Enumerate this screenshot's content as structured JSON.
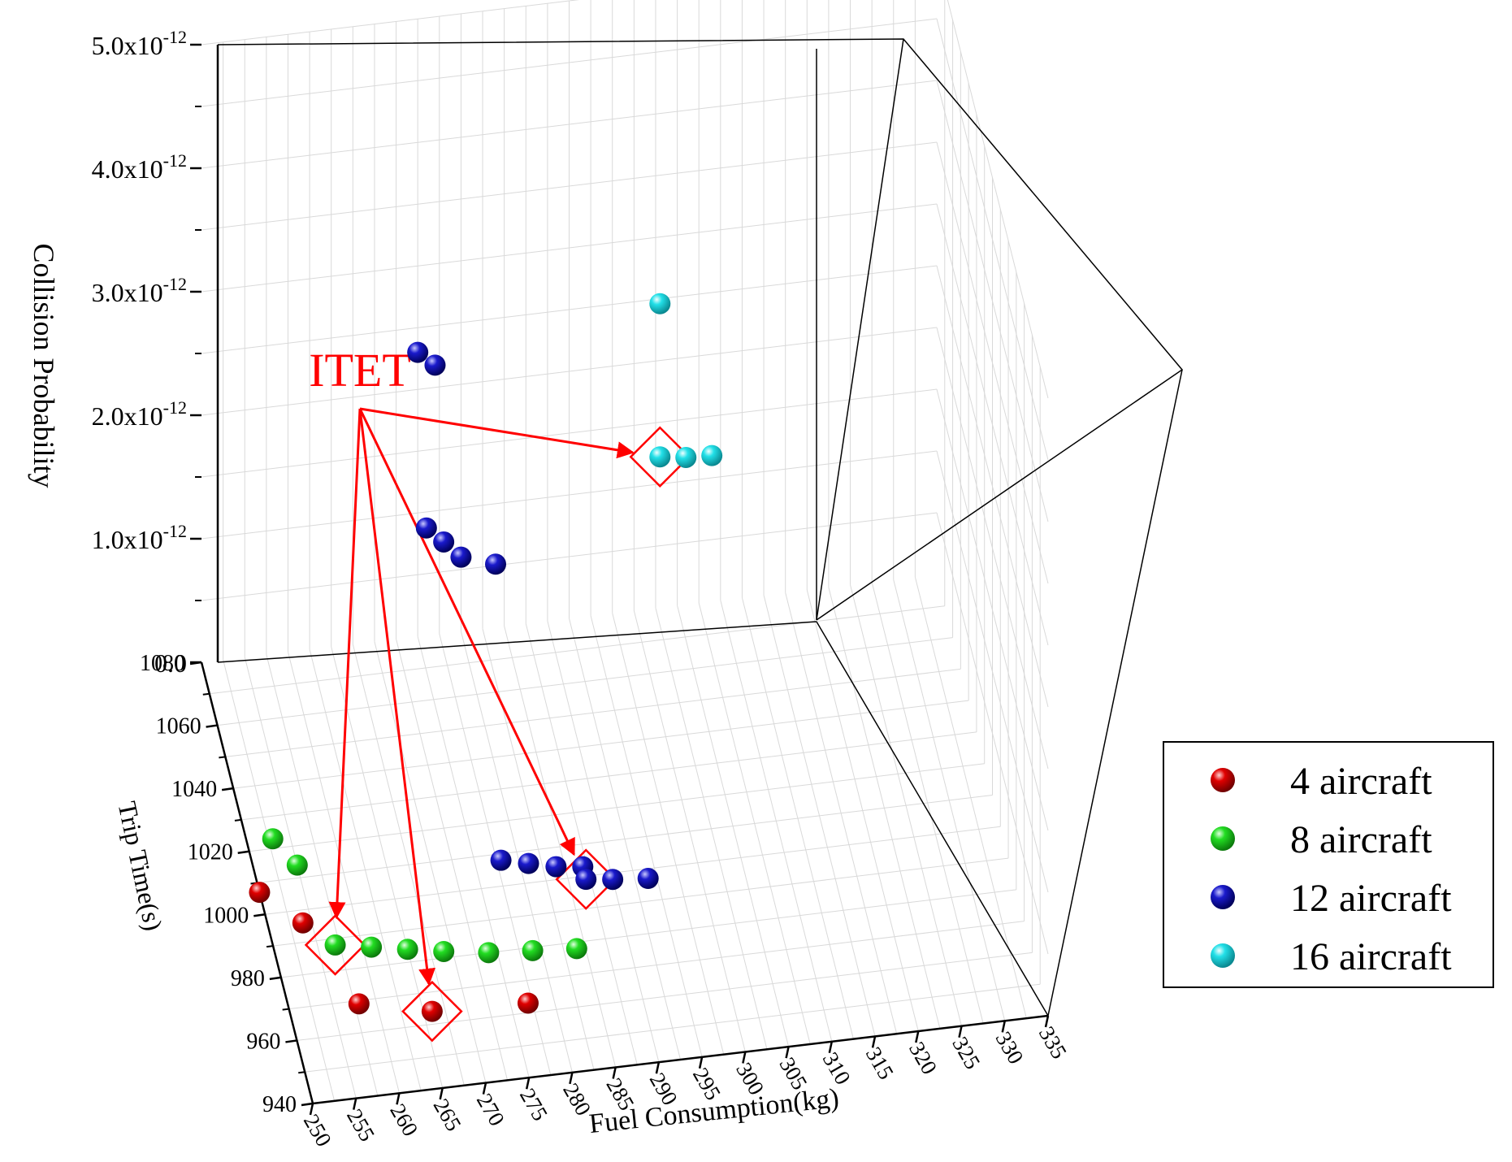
{
  "chart_data": {
    "type": "scatter",
    "projection": "3d",
    "title": "",
    "xlabel": "Fuel Consumption(kg)",
    "ylabel": "Trip Time(s)",
    "zlabel": "Collision Probability",
    "x_ticks": [
      "250",
      "255",
      "260",
      "265",
      "270",
      "275",
      "280",
      "285",
      "290",
      "295",
      "300",
      "305",
      "310",
      "315",
      "320",
      "325",
      "330",
      "335"
    ],
    "y_ticks": [
      "940",
      "960",
      "980",
      "1000",
      "1020",
      "1040",
      "1060",
      "1080"
    ],
    "z_tick_labels": [
      {
        "base": "0.0",
        "exp": ""
      },
      {
        "base": "1.0x10",
        "exp": "-12"
      },
      {
        "base": "2.0x10",
        "exp": "-12"
      },
      {
        "base": "3.0x10",
        "exp": "-12"
      },
      {
        "base": "4.0x10",
        "exp": "-12"
      },
      {
        "base": "5.0x10",
        "exp": "-12"
      }
    ],
    "z_tick_values": [
      0,
      1.0,
      2.0,
      3.0,
      4.0,
      5.0
    ],
    "z_unit": "x10^-12",
    "xlim": [
      250,
      335
    ],
    "ylim": [
      940,
      1080
    ],
    "zlim": [
      0,
      5.0
    ],
    "annotation": {
      "text": "ITET",
      "color": "#ff0000"
    },
    "legend": {
      "position": "right",
      "entries": [
        {
          "label": "4 aircraft",
          "color": "#e00000"
        },
        {
          "label": "8 aircraft",
          "color": "#22dd22"
        },
        {
          "label": "12 aircraft",
          "color": "#1a1acc"
        },
        {
          "label": "16 aircraft",
          "color": "#22e0e8"
        }
      ]
    },
    "series": [
      {
        "name": "4 aircraft",
        "color": "#e00000",
        "points": [
          {
            "x": 250,
            "y": 1007,
            "z": 0
          },
          {
            "x": 254,
            "y": 996,
            "z": 0
          },
          {
            "x": 258,
            "y": 969,
            "z": 0
          },
          {
            "x": 266,
            "y": 964,
            "z": 0
          },
          {
            "x": 277,
            "y": 963,
            "z": 0
          }
        ]
      },
      {
        "name": "8 aircraft",
        "color": "#22dd22",
        "points": [
          {
            "x": 253,
            "y": 1023,
            "z": 0
          },
          {
            "x": 255,
            "y": 1014,
            "z": 0
          },
          {
            "x": 257,
            "y": 988,
            "z": 0
          },
          {
            "x": 261,
            "y": 986,
            "z": 0
          },
          {
            "x": 265,
            "y": 984,
            "z": 0
          },
          {
            "x": 269,
            "y": 982,
            "z": 0
          },
          {
            "x": 274,
            "y": 980,
            "z": 0
          },
          {
            "x": 279,
            "y": 979,
            "z": 0
          },
          {
            "x": 284,
            "y": 978,
            "z": 0
          }
        ]
      },
      {
        "name": "12 aircraft",
        "color": "#1a1acc",
        "points": [
          {
            "x": 278,
            "y": 1008,
            "z": 0
          },
          {
            "x": 281,
            "y": 1006,
            "z": 0
          },
          {
            "x": 284,
            "y": 1004,
            "z": 0
          },
          {
            "x": 287,
            "y": 1003,
            "z": 0
          },
          {
            "x": 287,
            "y": 999,
            "z": 0
          },
          {
            "x": 290,
            "y": 998,
            "z": 0
          },
          {
            "x": 294,
            "y": 997,
            "z": 0
          },
          {
            "x": 275,
            "y": 1080,
            "z": 2.3
          },
          {
            "x": 277,
            "y": 1080,
            "z": 2.18
          },
          {
            "x": 276,
            "y": 1080,
            "z": 0.87
          },
          {
            "x": 278,
            "y": 1080,
            "z": 0.74
          },
          {
            "x": 280,
            "y": 1080,
            "z": 0.6
          },
          {
            "x": 284,
            "y": 1080,
            "z": 0.51
          }
        ]
      },
      {
        "name": "16 aircraft",
        "color": "#22e0e8",
        "points": [
          {
            "x": 303,
            "y": 1080,
            "z": 2.46
          },
          {
            "x": 303,
            "y": 1080,
            "z": 1.22
          },
          {
            "x": 306,
            "y": 1080,
            "z": 1.19
          },
          {
            "x": 309,
            "y": 1080,
            "z": 1.18
          }
        ]
      }
    ],
    "highlighted": [
      {
        "series": "8 aircraft",
        "x": 257,
        "y": 988,
        "z": 0
      },
      {
        "series": "4 aircraft",
        "x": 266,
        "y": 964,
        "z": 0
      },
      {
        "series": "12 aircraft",
        "x": 287,
        "y": 999,
        "z": 0
      },
      {
        "series": "16 aircraft",
        "x": 303,
        "y": 1080,
        "z": 1.22
      }
    ]
  }
}
